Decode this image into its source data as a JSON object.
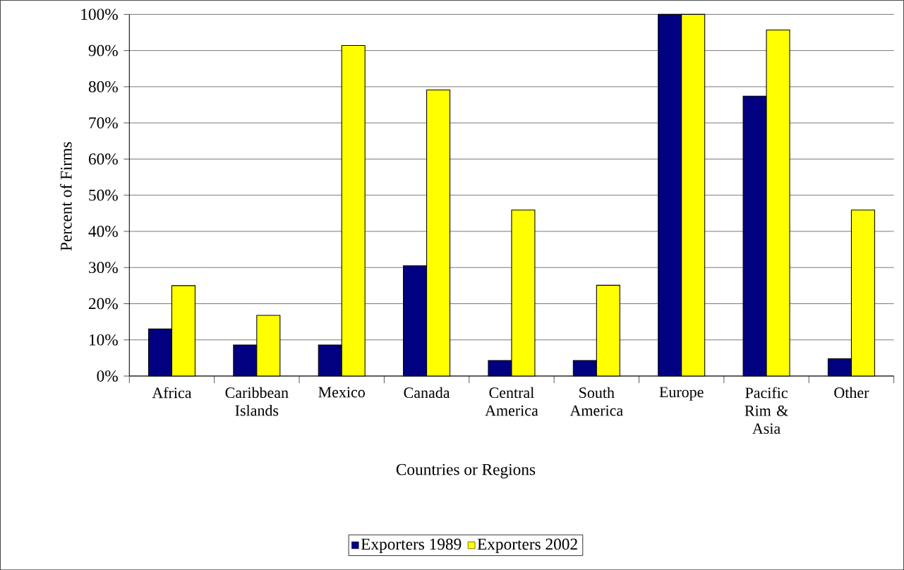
{
  "chart_data": {
    "type": "bar",
    "xlabel": "Countries or Regions",
    "ylabel": "Percent of Firms",
    "categories": [
      "Africa",
      "Caribbean Islands",
      "Mexico",
      "Canada",
      "Central America",
      "South America",
      "Europe",
      "Pacific Rim & Asia",
      "Other"
    ],
    "series": [
      {
        "name": "Exporters 1989",
        "color": "#000080",
        "values": [
          13,
          8.6,
          8.6,
          30.5,
          4.3,
          4.3,
          100,
          77.4,
          4.8
        ]
      },
      {
        "name": "Exporters 2002",
        "color": "#ffff00",
        "values": [
          25,
          16.8,
          91.4,
          79.1,
          45.9,
          25.1,
          100,
          95.7,
          45.9
        ]
      }
    ],
    "ylim": [
      0,
      100
    ],
    "yticks": [
      {
        "value": 0,
        "label": "0%"
      },
      {
        "value": 10,
        "label": "10%"
      },
      {
        "value": 20,
        "label": "20%"
      },
      {
        "value": 30,
        "label": "30%"
      },
      {
        "value": 40,
        "label": "40%"
      },
      {
        "value": 50,
        "label": "50%"
      },
      {
        "value": 60,
        "label": "60%"
      },
      {
        "value": 70,
        "label": "70%"
      },
      {
        "value": 80,
        "label": "80%"
      },
      {
        "value": 90,
        "label": "90%"
      },
      {
        "value": 100,
        "label": "100%"
      }
    ],
    "grid": "y",
    "legend": "bottom"
  }
}
